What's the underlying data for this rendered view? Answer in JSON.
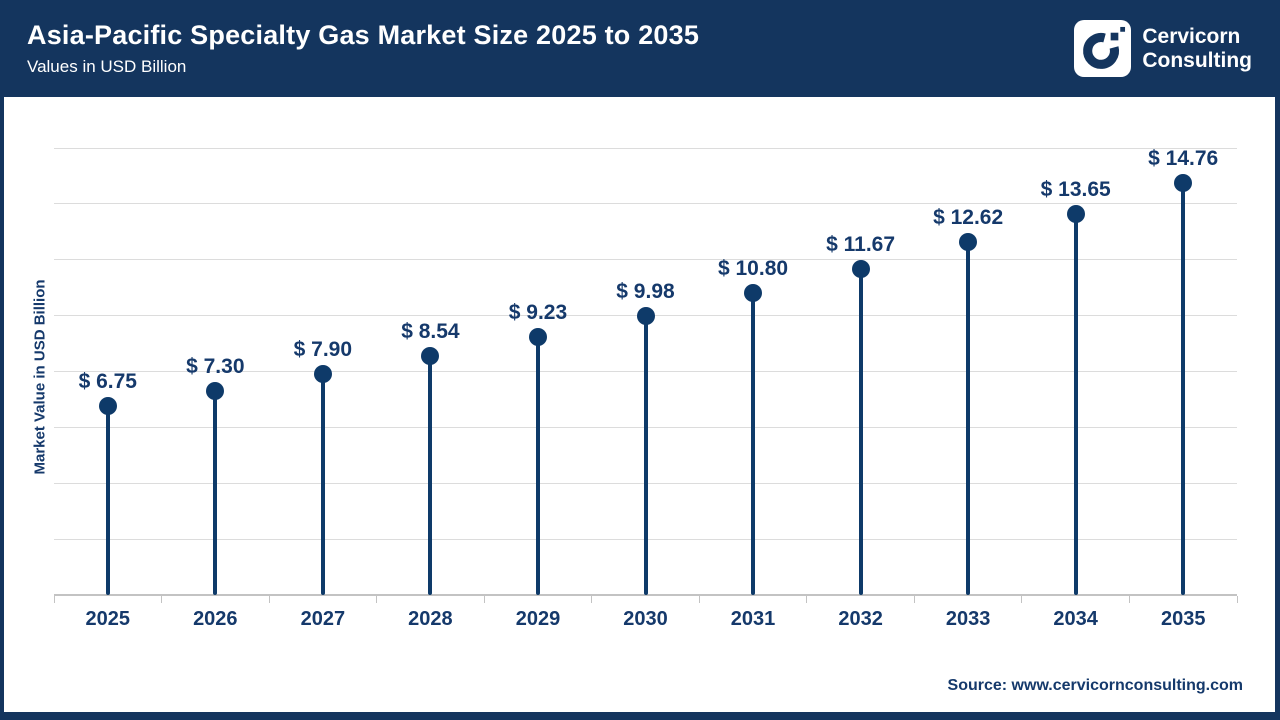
{
  "header": {
    "title": "Asia-Pacific Specialty Gas Market Size 2025 to 2035",
    "subtitle": "Values in USD Billion",
    "brand": {
      "logo": "cervicorn-c-logo",
      "name_line1": "Cervicorn",
      "name_line2": "Consulting"
    }
  },
  "chart_data": {
    "type": "lollipop",
    "title": "Asia-Pacific Specialty Gas Market Size 2025 to 2035",
    "categories": [
      "2025",
      "2026",
      "2027",
      "2028",
      "2029",
      "2030",
      "2031",
      "2032",
      "2033",
      "2034",
      "2035"
    ],
    "values": [
      6.75,
      7.3,
      7.9,
      8.54,
      9.23,
      9.98,
      10.8,
      11.67,
      12.62,
      13.65,
      14.76
    ],
    "value_prefix": "$ ",
    "value_decimals": 2,
    "xlabel": "",
    "ylabel": "Market Value in USD Billion",
    "ylim": [
      0,
      16
    ],
    "gridline_step": 2,
    "grid": "horizontal",
    "legend": "none"
  },
  "footer": {
    "source": "Source: www.cervicornconsulting.com"
  },
  "colors": {
    "header_background": "#14355e",
    "point_and_stem": "#0e3a69",
    "text_labels": "#15396b",
    "gridlines": "#dcdcdc",
    "axis": "#c3c3c3",
    "background": "#ffffff"
  }
}
